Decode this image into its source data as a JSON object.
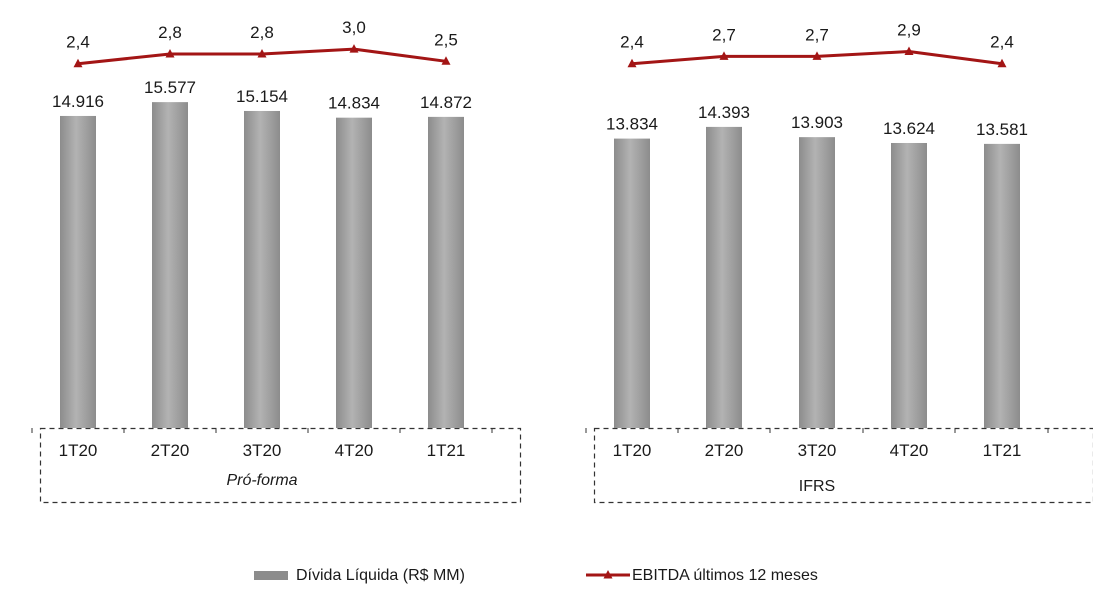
{
  "chart_data": {
    "type": "bar",
    "groups": [
      {
        "label": "Pró-forma",
        "label_italic": true,
        "categories": [
          "1T20",
          "2T20",
          "3T20",
          "4T20",
          "1T21"
        ],
        "series": [
          {
            "name": "Dívida Líquida (R$ MM)",
            "type": "bar",
            "values": [
              14916,
              15577,
              15154,
              14834,
              14872
            ],
            "value_labels": [
              "14.916",
              "15.577",
              "15.154",
              "14.834",
              "14.872"
            ]
          },
          {
            "name": "EBITDA últimos 12 meses",
            "type": "line",
            "values": [
              2.4,
              2.8,
              2.8,
              3.0,
              2.5
            ],
            "value_labels": [
              "2,4",
              "2,8",
              "2,8",
              "3,0",
              "2,5"
            ]
          }
        ]
      },
      {
        "label": "IFRS",
        "label_italic": false,
        "categories": [
          "1T20",
          "2T20",
          "3T20",
          "4T20",
          "1T21"
        ],
        "series": [
          {
            "name": "Dívida Líquida (R$ MM)",
            "type": "bar",
            "values": [
              13834,
              14393,
              13903,
              13624,
              13581
            ],
            "value_labels": [
              "13.834",
              "14.393",
              "13.903",
              "13.624",
              "13.581"
            ]
          },
          {
            "name": "EBITDA últimos 12 meses",
            "type": "line",
            "values": [
              2.4,
              2.7,
              2.7,
              2.9,
              2.4
            ],
            "value_labels": [
              "2,4",
              "2,7",
              "2,7",
              "2,9",
              "2,4"
            ]
          }
        ]
      }
    ],
    "legend": {
      "placement": "bottom-center",
      "items": [
        {
          "name": "Dívida Líquida (R$ MM)",
          "marker": "bar"
        },
        {
          "name": "EBITDA últimos 12 meses",
          "marker": "line-triangle"
        }
      ]
    },
    "colors": {
      "bar": "#8c8c8c",
      "bar_highlight": "#b3b3b3",
      "line": "#a31515"
    },
    "grid": false,
    "title": "",
    "xlabel": "",
    "ylabel": ""
  }
}
